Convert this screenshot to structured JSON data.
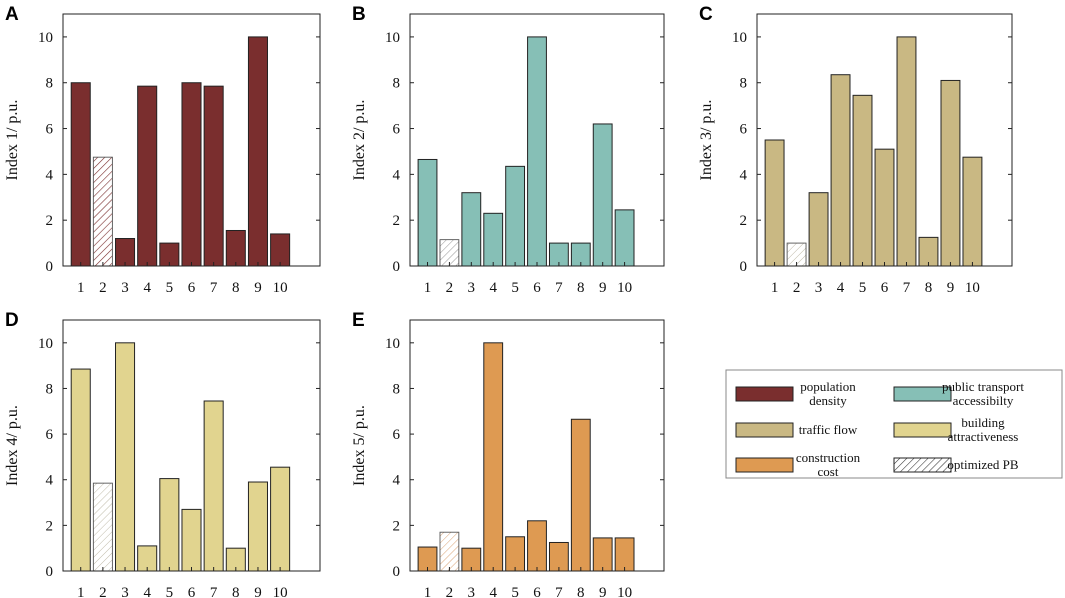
{
  "chart_data": [
    {
      "panel": "A",
      "type": "bar",
      "categories": [
        "1",
        "2",
        "3",
        "4",
        "5",
        "6",
        "7",
        "8",
        "9",
        "10"
      ],
      "values": [
        8.0,
        4.75,
        1.2,
        7.85,
        1.0,
        8.0,
        7.85,
        1.55,
        10.0,
        1.4
      ],
      "highlight_index": 1,
      "color": "#7a2e2e",
      "ylabel": "Index 1/ p.u.",
      "ylim": [
        0,
        11
      ],
      "yticks": [
        0,
        2,
        4,
        6,
        8,
        10
      ],
      "grid": false
    },
    {
      "panel": "B",
      "type": "bar",
      "categories": [
        "1",
        "2",
        "3",
        "4",
        "5",
        "6",
        "7",
        "8",
        "9",
        "10"
      ],
      "values": [
        4.65,
        1.15,
        3.2,
        2.3,
        4.35,
        10.0,
        1.0,
        1.0,
        6.2,
        2.45
      ],
      "highlight_index": 1,
      "color": "#86bfb6",
      "ylabel": "Index 2/ p.u.",
      "ylim": [
        0,
        11
      ],
      "yticks": [
        0,
        2,
        4,
        6,
        8,
        10
      ],
      "grid": false
    },
    {
      "panel": "C",
      "type": "bar",
      "categories": [
        "1",
        "2",
        "3",
        "4",
        "5",
        "6",
        "7",
        "8",
        "9",
        "10"
      ],
      "values": [
        5.5,
        1.0,
        3.2,
        8.35,
        7.45,
        5.1,
        10.0,
        1.25,
        8.1,
        4.75
      ],
      "highlight_index": 1,
      "color": "#c9b883",
      "ylabel": "Index 3/ p.u.",
      "ylim": [
        0,
        11
      ],
      "yticks": [
        0,
        2,
        4,
        6,
        8,
        10
      ],
      "grid": false
    },
    {
      "panel": "D",
      "type": "bar",
      "categories": [
        "1",
        "2",
        "3",
        "4",
        "5",
        "6",
        "7",
        "8",
        "9",
        "10"
      ],
      "values": [
        8.85,
        3.85,
        10.0,
        1.1,
        4.05,
        2.7,
        7.45,
        1.0,
        3.9,
        4.55
      ],
      "highlight_index": 1,
      "color": "#e1d48f",
      "ylabel": "Index 4/ p.u.",
      "ylim": [
        0,
        11
      ],
      "yticks": [
        0,
        2,
        4,
        6,
        8,
        10
      ],
      "grid": false
    },
    {
      "panel": "E",
      "type": "bar",
      "categories": [
        "1",
        "2",
        "3",
        "4",
        "5",
        "6",
        "7",
        "8",
        "9",
        "10"
      ],
      "values": [
        1.05,
        1.7,
        1.0,
        10.0,
        1.5,
        2.2,
        1.25,
        6.65,
        1.45,
        1.45
      ],
      "highlight_index": 1,
      "color": "#de9a52",
      "ylabel": "Index 5/ p.u.",
      "ylim": [
        0,
        11
      ],
      "yticks": [
        0,
        2,
        4,
        6,
        8,
        10
      ],
      "grid": false
    }
  ],
  "legend": {
    "placement": "bottom-right",
    "entries": [
      {
        "lines": [
          "population",
          "density"
        ],
        "color": "#7a2e2e",
        "pattern": "solid"
      },
      {
        "lines": [
          "public transport",
          "accessibilty"
        ],
        "color": "#86bfb6",
        "pattern": "solid"
      },
      {
        "lines": [
          "traffic flow"
        ],
        "color": "#c9b883",
        "pattern": "solid"
      },
      {
        "lines": [
          "building",
          "attractiveness"
        ],
        "color": "#e1d48f",
        "pattern": "solid"
      },
      {
        "lines": [
          "construction",
          "cost"
        ],
        "color": "#de9a52",
        "pattern": "solid"
      },
      {
        "lines": [
          "optimized PB"
        ],
        "color": "#ffffff",
        "pattern": "hatch"
      }
    ]
  }
}
